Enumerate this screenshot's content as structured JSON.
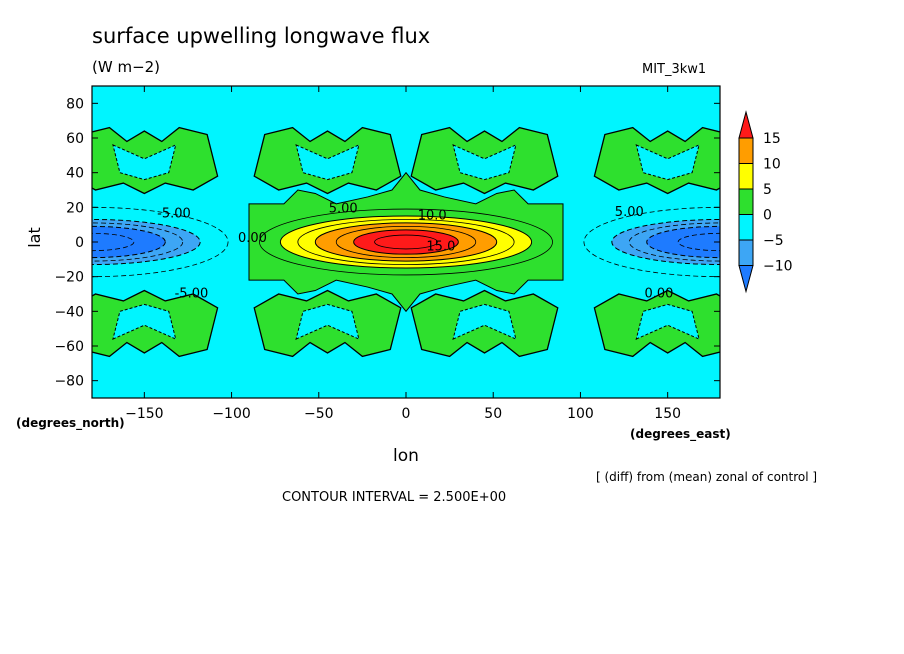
{
  "chart_data": {
    "type": "heatmap",
    "title": "surface upwelling longwave flux",
    "units": "(W m−2)",
    "model_label": "MIT_3kw1",
    "xlabel": "lon",
    "ylabel": "lat",
    "x_units": "(degrees_east)",
    "y_units": "(degrees_north)",
    "xlim": [
      -180,
      180
    ],
    "ylim": [
      -90,
      90
    ],
    "x_ticks": [
      -150,
      -100,
      -50,
      0,
      50,
      100,
      150
    ],
    "y_ticks": [
      80,
      60,
      40,
      20,
      0,
      -20,
      -40,
      -60,
      -80
    ],
    "x_tick_labels": [
      "−150",
      "−100",
      "−50",
      "0",
      "50",
      "100",
      "150"
    ],
    "y_tick_labels": [
      "80",
      "60",
      "40",
      "20",
      "0",
      "−20",
      "−40",
      "−60",
      "−80"
    ],
    "colorbar": {
      "levels": [
        -10,
        -5,
        0,
        5,
        10,
        15
      ],
      "labels": [
        "15",
        "10",
        "5",
        "0",
        "−5",
        "−10"
      ],
      "colors": {
        "below_-10": "#1e7bff",
        "-10_to_-5": "#3da6f5",
        "-5_to_0": "#00f5ff",
        "0_to_5": "#2ee02e",
        "5_to_10": "#ffff00",
        "10_to_15": "#ff9d00",
        "above_15": "#ff1a1a"
      }
    },
    "features": [
      {
        "name": "equatorial positive anomaly",
        "lon_center": 0,
        "lat_center": 0,
        "max_value": 17
      },
      {
        "name": "western negative anomaly",
        "lon_center": -180,
        "lat_center": 0,
        "min_value": -12
      },
      {
        "name": "eastern negative anomaly",
        "lon_center": 180,
        "lat_center": 0,
        "min_value": -12
      }
    ],
    "contour_labels": [
      "5.00",
      "10.0",
      "15.0",
      "-5.00",
      "0.00",
      "5.00",
      "-5.00",
      "0.00"
    ],
    "annotation": "[ (diff) from (mean) zonal of control ]",
    "contour_interval": "CONTOUR INTERVAL = 2.500E+00"
  }
}
